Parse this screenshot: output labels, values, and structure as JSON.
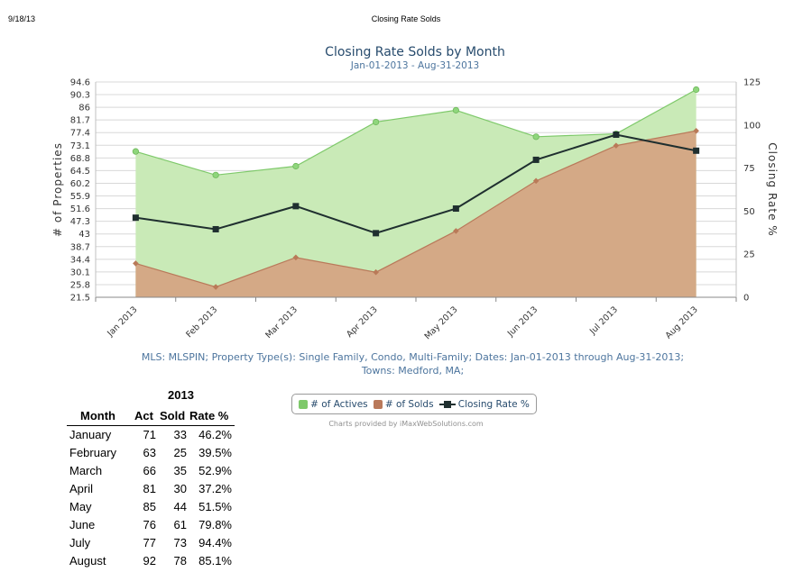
{
  "page_header": {
    "date": "9/18/13",
    "title": "Closing Rate Solds"
  },
  "chart_data": {
    "type": "area",
    "title": "Closing Rate Solds by Month",
    "subtitle": "Jan-01-2013 - Aug-31-2013",
    "categories": [
      "Jan 2013",
      "Feb 2013",
      "Mar 2013",
      "Apr 2013",
      "May 2013",
      "Jun 2013",
      "Jul 2013",
      "Aug 2013"
    ],
    "ylabel": "# of Properties",
    "y2label": "Closing Rate %",
    "ylim": [
      21.5,
      94.6
    ],
    "y_ticks": [
      "94.6",
      "90.3",
      "86",
      "81.7",
      "77.4",
      "73.1",
      "68.8",
      "64.5",
      "60.2",
      "55.9",
      "51.6",
      "47.3",
      "43",
      "38.7",
      "34.4",
      "30.1",
      "25.8",
      "21.5"
    ],
    "y2lim": [
      0,
      125
    ],
    "y2_ticks": [
      "125",
      "100",
      "75",
      "50",
      "25",
      "0"
    ],
    "series": [
      {
        "name": "# of Actives",
        "type": "area",
        "axis": "left",
        "color": "#7ec96a",
        "fill": "#c9eab7",
        "values": [
          71,
          63,
          66,
          81,
          85,
          76,
          77,
          92
        ]
      },
      {
        "name": "# of Solds",
        "type": "area",
        "axis": "left",
        "color": "#b9795a",
        "fill": "#d4a986",
        "values": [
          33,
          25,
          35,
          30,
          44,
          61,
          73,
          78
        ]
      },
      {
        "name": "Closing Rate %",
        "type": "line",
        "axis": "right",
        "color": "#1f2f2f",
        "values": [
          46.2,
          39.5,
          52.9,
          37.2,
          51.5,
          79.8,
          94.4,
          85.1
        ]
      }
    ],
    "grid": true,
    "legend_position": "bottom"
  },
  "info": {
    "line1": "MLS: MLSPIN; Property Type(s): Single Family, Condo, Multi-Family; Dates: Jan-01-2013 through Aug-31-2013;",
    "line2": "Towns: Medford, MA;"
  },
  "credit": "Charts provided by iMaxWebSolutions.com",
  "table": {
    "year": "2013",
    "headers": {
      "month": "Month",
      "act": "Act",
      "sold": "Sold",
      "rate": "Rate %"
    },
    "rows": [
      {
        "month": "January",
        "act": "71",
        "sold": "33",
        "rate": "46.2%"
      },
      {
        "month": "February",
        "act": "63",
        "sold": "25",
        "rate": "39.5%"
      },
      {
        "month": "March",
        "act": "66",
        "sold": "35",
        "rate": "52.9%"
      },
      {
        "month": "April",
        "act": "81",
        "sold": "30",
        "rate": "37.2%"
      },
      {
        "month": "May",
        "act": "85",
        "sold": "44",
        "rate": "51.5%"
      },
      {
        "month": "June",
        "act": "76",
        "sold": "61",
        "rate": "79.8%"
      },
      {
        "month": "July",
        "act": "77",
        "sold": "73",
        "rate": "94.4%"
      },
      {
        "month": "August",
        "act": "92",
        "sold": "78",
        "rate": "85.1%"
      }
    ]
  }
}
